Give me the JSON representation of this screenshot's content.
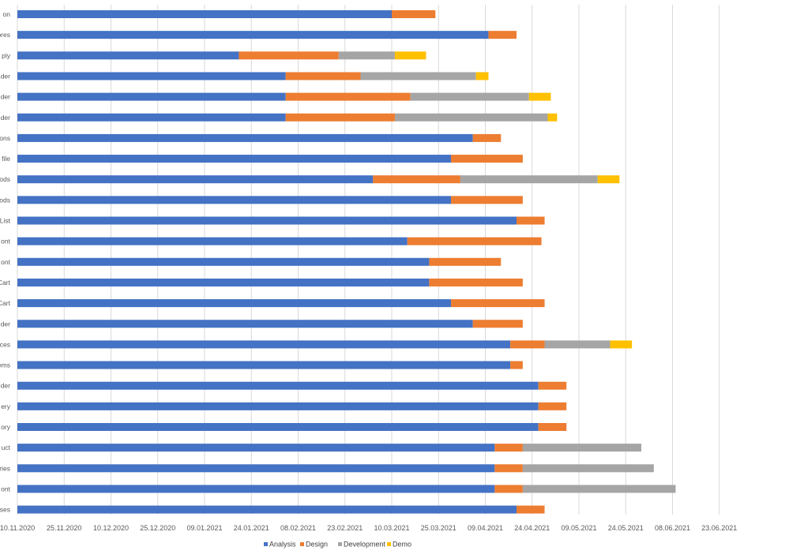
{
  "chart_data": {
    "type": "bar",
    "orientation": "horizontal",
    "stacked": true,
    "title": "",
    "xlabel": "",
    "ylabel": "",
    "value_unit": "days",
    "x_axis_origin_date": "10.11.2020",
    "xlim": [
      0,
      225
    ],
    "x_ticks": [
      0,
      15,
      30,
      45,
      60,
      75,
      90,
      105,
      120,
      135,
      150,
      165,
      180,
      195,
      210,
      225
    ],
    "x_tick_labels": [
      "10.11.2020",
      "25.11.2020",
      "10.12.2020",
      "25.12.2020",
      "09.01.2021",
      "24.01.2021",
      "08.02.2021",
      "23.02.2021",
      "10.03.2021",
      "25.03.2021",
      "09.04.2021",
      "24.04.2021",
      "09.05.2021",
      "24.05.2021",
      "08.06.2021",
      "23.06.2021"
    ],
    "grid": "vertical",
    "legend_position": "bottom",
    "categories": [
      "on",
      "ores",
      "ply",
      "der",
      "der",
      "der",
      "ons",
      "file",
      "ods",
      "ods",
      "List",
      "ont",
      "ont",
      "Cart",
      "Cart",
      "der",
      "ces",
      "ems",
      "der",
      "ery",
      "ory",
      "uct",
      "ries",
      "ont",
      "ses"
    ],
    "series": [
      {
        "name": "Analysis",
        "color": "#4472c4",
        "values": [
          120,
          151,
          71,
          86,
          86,
          86,
          146,
          139,
          114,
          139,
          160,
          125,
          132,
          132,
          139,
          146,
          158,
          158,
          167,
          167,
          167,
          153,
          153,
          153,
          160
        ]
      },
      {
        "name": "Design",
        "color": "#ed7d31",
        "values": [
          14,
          9,
          32,
          24,
          40,
          35,
          9,
          23,
          28,
          23,
          9,
          43,
          23,
          30,
          30,
          16,
          11,
          4,
          9,
          9,
          9,
          9,
          9,
          9,
          9
        ]
      },
      {
        "name": "Development",
        "color": "#a5a5a5",
        "values": [
          0,
          0,
          18,
          37,
          38,
          49,
          0,
          0,
          44,
          0,
          0,
          0,
          0,
          0,
          0,
          0,
          21,
          0,
          0,
          0,
          0,
          38,
          42,
          49,
          0
        ]
      },
      {
        "name": "Demo",
        "color": "#ffc000",
        "values": [
          0,
          0,
          10,
          4,
          7,
          3,
          0,
          0,
          7,
          0,
          0,
          0,
          0,
          0,
          0,
          0,
          7,
          0,
          0,
          0,
          0,
          0,
          0,
          0,
          0
        ]
      }
    ]
  }
}
